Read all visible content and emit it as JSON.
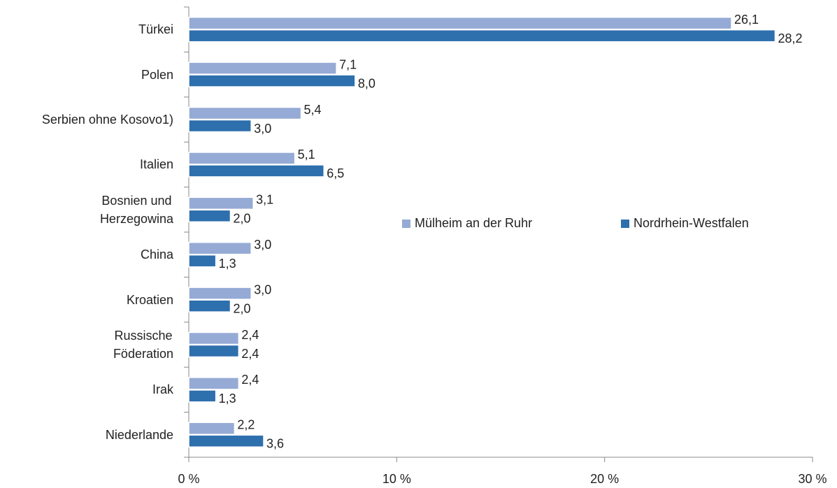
{
  "chart_data": {
    "type": "bar",
    "orientation": "horizontal",
    "categories": [
      "Türkei",
      "Polen",
      "Serbien ohne Kosovo1)",
      "Italien",
      "Bosnien und\nHerzegowina",
      "China",
      "Kroatien",
      "Russische\nFöderation",
      "Irak",
      "Niederlande"
    ],
    "series": [
      {
        "name": "Mülheim an der Ruhr",
        "color": "#95aad4",
        "values": [
          26.1,
          7.1,
          5.4,
          5.1,
          3.1,
          3.0,
          3.0,
          2.4,
          2.4,
          2.2
        ],
        "value_labels": [
          "26,1",
          "7,1",
          "5,4",
          "5,1",
          "3,1",
          "3,0",
          "3,0",
          "2,4",
          "2,4",
          "2,2"
        ]
      },
      {
        "name": "Nordrhein-Westfalen",
        "color": "#2e6fad",
        "values": [
          28.2,
          8.0,
          3.0,
          6.5,
          2.0,
          1.3,
          2.0,
          2.4,
          1.3,
          3.6
        ],
        "value_labels": [
          "28,2",
          "8,0",
          "3,0",
          "6,5",
          "2,0",
          "1,3",
          "2,0",
          "2,4",
          "1,3",
          "3,6"
        ]
      }
    ],
    "xlim": [
      0,
      30
    ],
    "xticks": [
      {
        "value": 0,
        "label": "0 %"
      },
      {
        "value": 10,
        "label": "10 %"
      },
      {
        "value": 20,
        "label": "20 %"
      },
      {
        "value": 30,
        "label": "30 %"
      }
    ],
    "grid": false,
    "legend": "center"
  }
}
